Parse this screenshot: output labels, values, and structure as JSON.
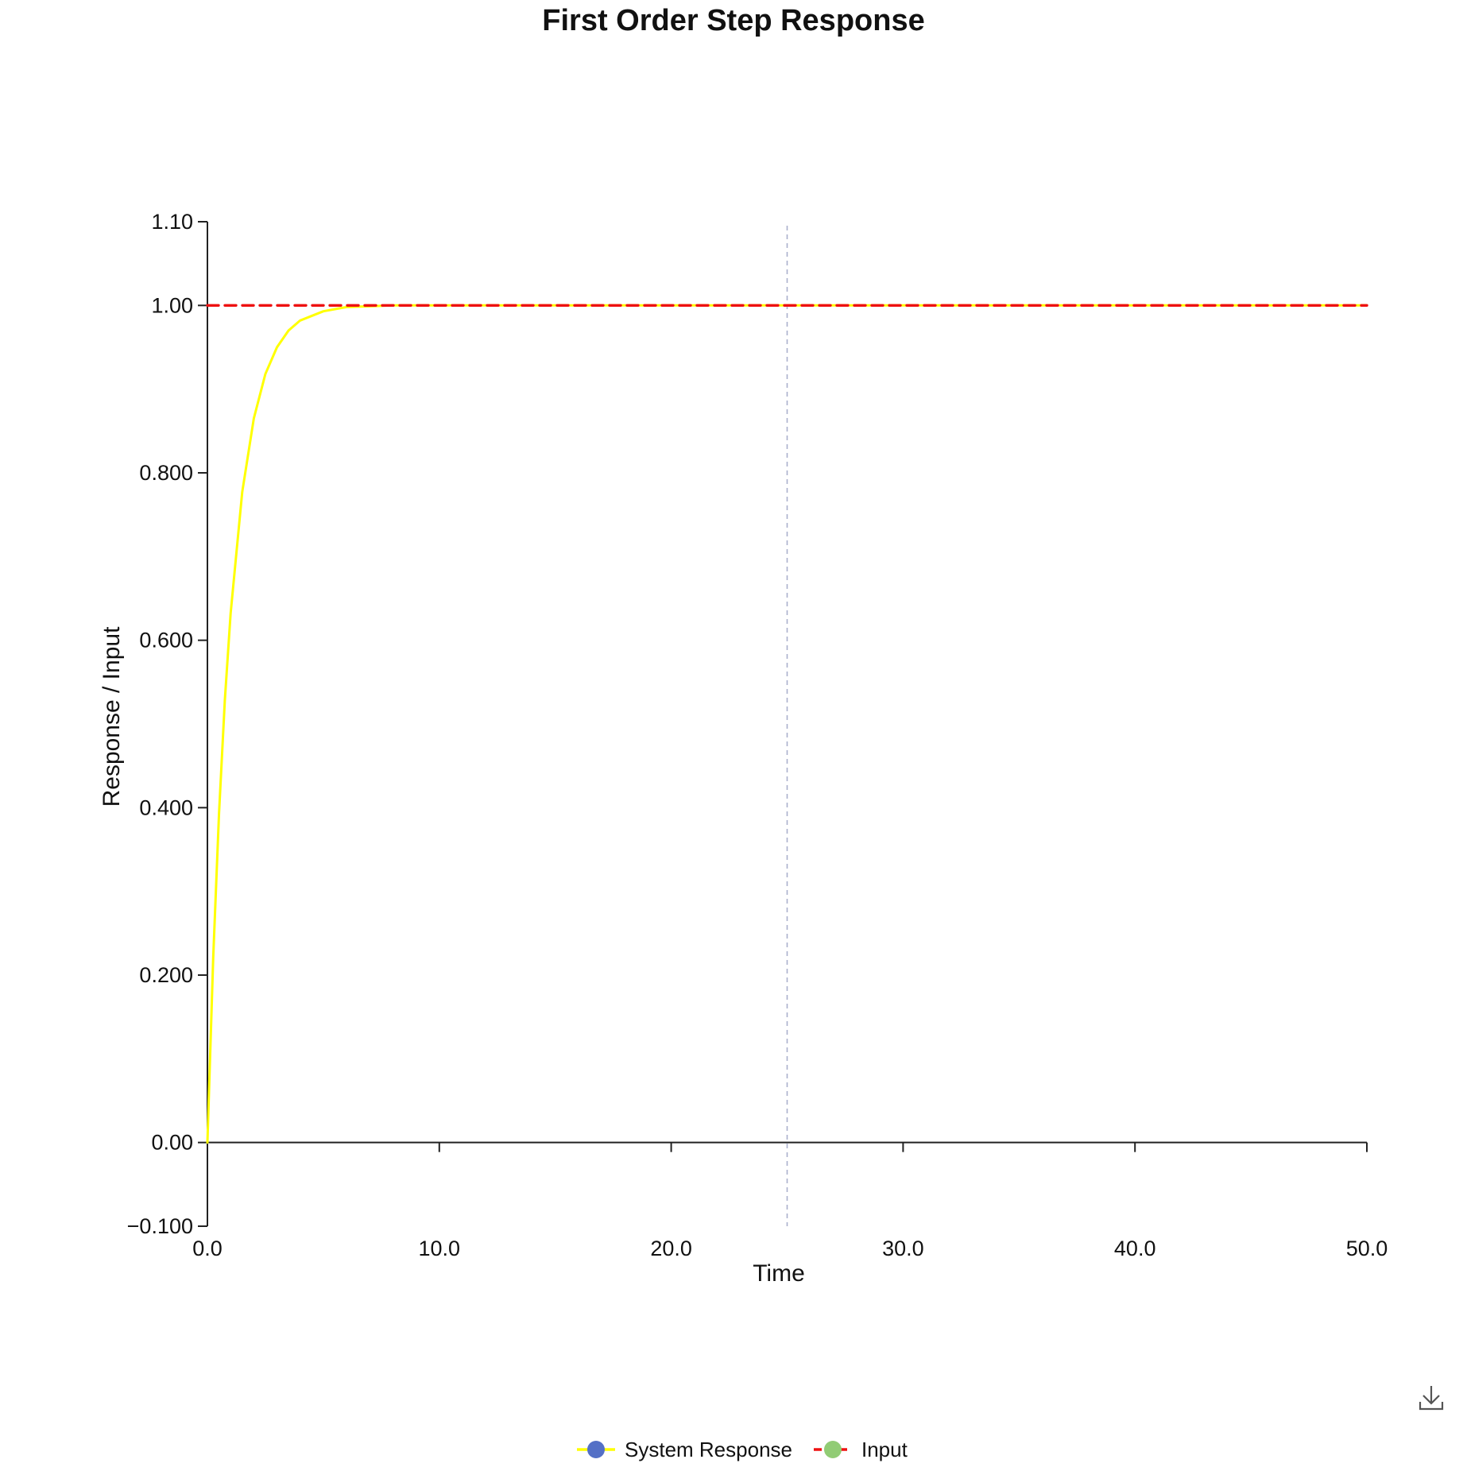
{
  "chart_data": {
    "type": "line",
    "title": "First Order Step Response",
    "xlabel": "Time",
    "ylabel": "Response / Input",
    "xlim": [
      0,
      50
    ],
    "ylim": [
      -0.1,
      1.1
    ],
    "x_ticks": [
      0,
      10,
      20,
      30,
      40,
      50
    ],
    "x_tick_labels": [
      "0.0",
      "10.0",
      "20.0",
      "30.0",
      "40.0",
      "50.0"
    ],
    "y_ticks": [
      -0.1,
      0,
      0.2,
      0.4,
      0.6,
      0.8,
      1.0,
      1.1
    ],
    "y_tick_labels": [
      "−0.100",
      "0.00",
      "0.200",
      "0.400",
      "0.600",
      "0.800",
      "1.00",
      "1.10"
    ],
    "grid": false,
    "cursor_x": 25,
    "legend_position": "bottom-center",
    "series": [
      {
        "name": "System Response",
        "line_color": "#ffff00",
        "marker_color": "#5470c6",
        "dashed": false,
        "x": [
          0,
          0.25,
          0.5,
          0.75,
          1,
          1.5,
          2,
          2.5,
          3,
          3.5,
          4,
          5,
          6,
          7,
          8,
          10,
          15,
          20,
          25,
          30,
          35,
          40,
          45,
          50
        ],
        "y": [
          0,
          0.221,
          0.393,
          0.528,
          0.632,
          0.777,
          0.865,
          0.918,
          0.95,
          0.97,
          0.982,
          0.993,
          0.998,
          0.999,
          1.0,
          1.0,
          1.0,
          1.0,
          1.0,
          1.0,
          1.0,
          1.0,
          1.0,
          1.0
        ]
      },
      {
        "name": "Input",
        "line_color": "#ee1111",
        "marker_color": "#91cc75",
        "dashed": true,
        "x": [
          0,
          50
        ],
        "y": [
          1.0,
          1.0
        ]
      }
    ]
  },
  "toolbar": {
    "download_icon": "download-icon"
  }
}
